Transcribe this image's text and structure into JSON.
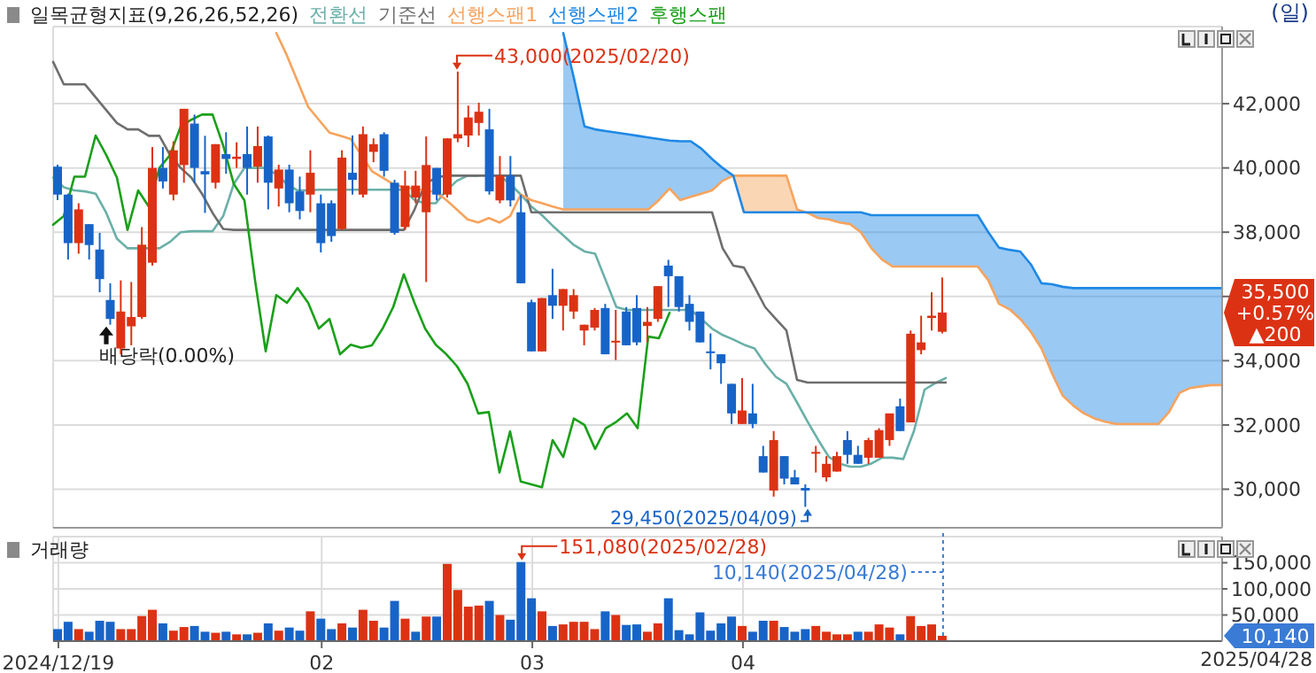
{
  "chart_data": [
    {
      "type": "candlestick",
      "legend_title": "일목균형지표(9,26,26,52,26)",
      "legend": "top left",
      "grid": true,
      "marker": "none",
      "tick_labels": "y",
      "categories": [
        "2024/12/19",
        null,
        null,
        null,
        null,
        null,
        null,
        null,
        null,
        null,
        null,
        null,
        null,
        null,
        null,
        null,
        null,
        null,
        null,
        null,
        null,
        null,
        null,
        null,
        null,
        "02",
        null,
        null,
        null,
        null,
        null,
        null,
        null,
        null,
        null,
        null,
        null,
        null,
        null,
        null,
        null,
        null,
        null,
        null,
        null,
        "03",
        null,
        null,
        null,
        null,
        null,
        null,
        null,
        null,
        null,
        null,
        null,
        null,
        null,
        null,
        null,
        null,
        null,
        null,
        null,
        "04",
        null,
        null,
        null,
        null,
        null,
        null,
        null,
        null,
        null,
        null,
        null,
        null,
        null,
        null,
        null,
        null,
        null,
        null,
        null,
        null,
        null,
        null,
        null,
        null,
        null,
        null,
        null,
        null,
        null,
        null,
        null,
        null,
        null,
        null,
        null,
        null,
        null,
        null,
        null,
        null,
        null,
        null,
        null,
        null,
        null
      ],
      "ylim": [
        28800,
        44400
      ],
      "yticks": [
        {
          "value": 30000,
          "label": "30,000"
        },
        {
          "value": 32000,
          "label": "32,000"
        },
        {
          "value": 34000,
          "label": "34,000"
        },
        {
          "value": 36000,
          "label": null
        },
        {
          "value": 38000,
          "label": "38,000"
        },
        {
          "value": 40000,
          "label": "40,000"
        },
        {
          "value": 42000,
          "label": "42,000"
        }
      ],
      "ohlc": [
        [
          40040,
          40100,
          39000,
          39170
        ],
        [
          39170,
          39200,
          37150,
          37660
        ],
        [
          37660,
          38900,
          37330,
          38710
        ],
        [
          38250,
          38250,
          37150,
          37600
        ],
        [
          37460,
          37980,
          36130,
          36540
        ],
        [
          35890,
          36410,
          35120,
          35300
        ],
        [
          34380,
          36500,
          34200,
          35530
        ],
        [
          35070,
          36450,
          34480,
          35360
        ],
        [
          35360,
          38160,
          35300,
          37610
        ],
        [
          37050,
          40650,
          36960,
          40000
        ],
        [
          40000,
          40650,
          39360,
          39580
        ],
        [
          39170,
          40830,
          38990,
          40550
        ],
        [
          40090,
          41840,
          39540,
          41840
        ],
        [
          41380,
          41660,
          39540,
          40000
        ],
        [
          39900,
          41000,
          38600,
          39800
        ],
        [
          39540,
          40740,
          39360,
          40740
        ],
        [
          40430,
          41110,
          39820,
          40280
        ],
        [
          40280,
          40800,
          40000,
          40350
        ],
        [
          40430,
          41290,
          39170,
          40000
        ],
        [
          40040,
          41290,
          39540,
          40680
        ],
        [
          40980,
          41010,
          38710,
          39540
        ],
        [
          39360,
          40100,
          38800,
          39950
        ],
        [
          39950,
          40100,
          38620,
          38900
        ],
        [
          39270,
          39730,
          38400,
          38660
        ],
        [
          39170,
          40550,
          38620,
          39850
        ],
        [
          38900,
          39170,
          37370,
          37660
        ],
        [
          38900,
          38990,
          37700,
          37880
        ],
        [
          38100,
          40550,
          38070,
          40320
        ],
        [
          39850,
          41010,
          39170,
          39630
        ],
        [
          39170,
          41290,
          39080,
          41050
        ],
        [
          40500,
          40920,
          40180,
          40740
        ],
        [
          41050,
          41110,
          39730,
          39910
        ],
        [
          39540,
          39630,
          37920,
          37980
        ],
        [
          38160,
          39910,
          38070,
          39450
        ],
        [
          39080,
          39910,
          38900,
          39450
        ],
        [
          38620,
          40980,
          36450,
          40090
        ],
        [
          40000,
          40000,
          38990,
          39170
        ],
        [
          39170,
          40920,
          39080,
          40920
        ],
        [
          40920,
          43000,
          40800,
          41050
        ],
        [
          41010,
          41940,
          40650,
          41570
        ],
        [
          41400,
          42030,
          41010,
          41750
        ],
        [
          41200,
          41840,
          39170,
          39270
        ],
        [
          38990,
          40370,
          38900,
          39760
        ],
        [
          39760,
          40370,
          38800,
          38990
        ],
        [
          38620,
          39170,
          36410,
          36410
        ],
        [
          35820,
          35900,
          34290,
          34290
        ],
        [
          34290,
          35950,
          34290,
          35950
        ],
        [
          36040,
          36860,
          35300,
          35710
        ],
        [
          35710,
          36230,
          34940,
          36230
        ],
        [
          35530,
          36230,
          35300,
          36040
        ],
        [
          34940,
          35120,
          34480,
          35120
        ],
        [
          35030,
          35640,
          34940,
          35580
        ],
        [
          35640,
          35770,
          34200,
          34200
        ],
        [
          34570,
          35580,
          34020,
          34620
        ],
        [
          35530,
          35670,
          34480,
          34480
        ],
        [
          35640,
          36040,
          34480,
          34570
        ],
        [
          35080,
          35670,
          34570,
          35210
        ],
        [
          35300,
          36320,
          35210,
          36320
        ],
        [
          36960,
          37140,
          35670,
          36630
        ],
        [
          36630,
          36630,
          35530,
          35670
        ],
        [
          35770,
          36040,
          34940,
          35210
        ],
        [
          35530,
          35530,
          34570,
          34570
        ],
        [
          34290,
          34850,
          33730,
          34240
        ],
        [
          34200,
          34200,
          33280,
          33920
        ],
        [
          33280,
          33280,
          32030,
          32360
        ],
        [
          32030,
          33460,
          32030,
          32450
        ],
        [
          32360,
          33280,
          31900,
          32030
        ],
        [
          31030,
          31350,
          30520,
          30520
        ],
        [
          29960,
          31810,
          29770,
          31530
        ],
        [
          31030,
          31030,
          30150,
          30330
        ],
        [
          30370,
          30600,
          30150,
          30150
        ],
        [
          30040,
          30150,
          29450,
          29960
        ],
        [
          31140,
          31350,
          30520,
          31160
        ],
        [
          30370,
          31030,
          30240,
          30790
        ],
        [
          30550,
          31160,
          30550,
          31030
        ],
        [
          31530,
          31810,
          30790,
          31070
        ],
        [
          31070,
          31350,
          30790,
          30790
        ],
        [
          30980,
          31600,
          30790,
          31530
        ],
        [
          30980,
          31900,
          30980,
          31840
        ],
        [
          31530,
          32360,
          31350,
          32360
        ],
        [
          32580,
          32820,
          31810,
          31810
        ],
        [
          32080,
          34940,
          32080,
          34840
        ],
        [
          34330,
          35400,
          34200,
          34570
        ],
        [
          35330,
          36130,
          34940,
          35400
        ],
        [
          34900,
          36590,
          34850,
          35500
        ],
        null,
        null,
        null,
        null,
        null,
        null,
        null,
        null,
        null,
        null,
        null,
        null,
        null,
        null,
        null,
        null,
        null,
        null,
        null,
        null,
        null,
        null,
        null,
        null,
        null,
        null
      ],
      "colors": [
        "#1764c8",
        "#1764c8",
        "#dc3214",
        "#1764c8",
        "#1764c8",
        "#1764c8",
        "#dc3214",
        "#dc3214",
        "#dc3214",
        "#dc3214",
        "#1764c8",
        "#dc3214",
        "#dc3214",
        "#1764c8",
        "#1764c8",
        "#dc3214",
        "#1764c8",
        "#dc3214",
        "#1764c8",
        "#dc3214",
        "#1764c8",
        "#dc3214",
        "#1764c8",
        "#1764c8",
        "#dc3214",
        "#1764c8",
        "#1764c8",
        "#dc3214",
        "#1764c8",
        "#dc3214",
        "#dc3214",
        "#1764c8",
        "#1764c8",
        "#dc3214",
        "#dc3214",
        "#dc3214",
        "#1764c8",
        "#dc3214",
        "#dc3214",
        "#dc3214",
        "#dc3214",
        "#1764c8",
        "#dc3214",
        "#1764c8",
        "#1764c8",
        "#1764c8",
        "#dc3214",
        "#1764c8",
        "#dc3214",
        "#dc3214",
        "#dc3214",
        "#dc3214",
        "#1764c8",
        "#dc3214",
        "#1764c8",
        "#1764c8",
        "#dc3214",
        "#dc3214",
        "#1764c8",
        "#1764c8",
        "#1764c8",
        "#1764c8",
        "#1764c8",
        "#1764c8",
        "#1764c8",
        "#dc3214",
        "#1764c8",
        "#1764c8",
        "#dc3214",
        "#1764c8",
        "#1764c8",
        "#1764c8",
        "#dc3214",
        "#dc3214",
        "#dc3214",
        "#1764c8",
        "#1764c8",
        "#dc3214",
        "#dc3214",
        "#dc3214",
        "#1764c8",
        "#dc3214",
        "#dc3214",
        "#dc3214",
        "#dc3214",
        null,
        null,
        null,
        null,
        null,
        null,
        null,
        null,
        null,
        null,
        null,
        null,
        null,
        null,
        null,
        null,
        null,
        null,
        null,
        null,
        null,
        null,
        null,
        null,
        null,
        null
      ],
      "series": [
        {
          "name": "전환선",
          "type": "line",
          "color": "#6ab0a8",
          "values": [
            39700,
            39400,
            39300,
            39270,
            39200,
            38600,
            37800,
            37500,
            37500,
            37500,
            37500,
            37700,
            38000,
            38030,
            38030,
            38030,
            38500,
            39500,
            40000,
            40000,
            40000,
            39800,
            39500,
            39300,
            39300,
            39320,
            39320,
            39320,
            39320,
            39320,
            39320,
            39320,
            39320,
            39320,
            39000,
            38900,
            38900,
            39300,
            39600,
            39760,
            39760,
            null,
            39760,
            39500,
            39170,
            38800,
            38530,
            38200,
            37900,
            37600,
            37400,
            37330,
            36500,
            35670,
            35580,
            35580,
            35580,
            35580,
            35580,
            35580,
            35580,
            35300,
            35000,
            34800,
            34660,
            34500,
            34380,
            33900,
            33500,
            33280,
            32700,
            32100,
            31530,
            31000,
            30800,
            30700,
            30700,
            30800,
            30980,
            30980,
            30940,
            31810,
            33100,
            33300,
            33460,
            null,
            null,
            null,
            null,
            null,
            null,
            null,
            null,
            null,
            null,
            null,
            null,
            null,
            null,
            null,
            null,
            null,
            null,
            null,
            null,
            null,
            null,
            null,
            null,
            null,
            null
          ]
        },
        {
          "name": "기준선",
          "type": "line",
          "color": "#6e6e6e",
          "values": [
            43300,
            42600,
            42600,
            42600,
            42200,
            41800,
            41400,
            41200,
            41200,
            41000,
            41000,
            40400,
            40000,
            39700,
            39200,
            38600,
            38100,
            38070,
            38070,
            38070,
            38070,
            38070,
            38070,
            38070,
            38070,
            38070,
            38070,
            38070,
            38070,
            38070,
            38070,
            38070,
            38070,
            38070,
            38700,
            39500,
            39700,
            39760,
            39760,
            39760,
            39760,
            39760,
            39760,
            39760,
            39760,
            38620,
            38620,
            38620,
            38620,
            38620,
            38620,
            38620,
            38620,
            38620,
            38620,
            38620,
            38620,
            38620,
            38620,
            38620,
            38620,
            38620,
            38620,
            37500,
            36960,
            36900,
            36300,
            35670,
            35300,
            34940,
            33400,
            33320,
            33320,
            33320,
            33320,
            33320,
            33320,
            33320,
            33320,
            33320,
            33320,
            33320,
            33320,
            33320,
            33320,
            null,
            null,
            null,
            null,
            null,
            null,
            null,
            null,
            null,
            null,
            null,
            null,
            null,
            null,
            null,
            null,
            null,
            null,
            null,
            null,
            null,
            null,
            null,
            null,
            null,
            null
          ]
        },
        {
          "name": "선행스팬1",
          "type": "line",
          "color": "#f7a35c",
          "values": [
            null,
            null,
            null,
            null,
            null,
            null,
            null,
            null,
            null,
            null,
            null,
            null,
            null,
            null,
            null,
            null,
            null,
            null,
            null,
            null,
            null,
            44200,
            43500,
            42700,
            41900,
            41500,
            41100,
            41000,
            40900,
            40400,
            39900,
            39700,
            39500,
            39400,
            39350,
            39300,
            39250,
            39000,
            38700,
            38400,
            38300,
            38440,
            38300,
            38500,
            39170,
            39000,
            38900,
            38800,
            38710,
            38710,
            38710,
            38710,
            38710,
            38710,
            38710,
            38710,
            38710,
            39000,
            39360,
            39000,
            39100,
            39200,
            39300,
            39600,
            39760,
            39760,
            39760,
            39760,
            39760,
            39760,
            38710,
            38600,
            38440,
            38400,
            38300,
            38250,
            38000,
            37500,
            37150,
            36930,
            36930,
            36930,
            36930,
            36930,
            36930,
            36930,
            36930,
            36930,
            36500,
            35770,
            35600,
            35300,
            34900,
            34380,
            33600,
            32910,
            32600,
            32360,
            32200,
            32100,
            32030,
            32030,
            32030,
            32030,
            32030,
            32400,
            33000,
            33150,
            33200,
            33240,
            33240
          ],
          "lower": [
            null,
            null,
            null,
            null,
            null,
            null,
            null,
            null,
            null,
            null,
            null,
            null,
            null,
            null,
            null,
            null,
            null,
            null,
            null,
            null,
            null,
            null,
            null,
            null,
            null,
            null,
            null,
            null,
            null,
            null,
            null,
            null,
            null,
            null,
            null,
            null,
            null,
            null,
            null,
            null,
            null,
            null,
            null,
            null,
            null,
            null,
            null,
            null,
            null,
            null,
            null,
            null,
            null,
            null,
            null,
            null,
            null,
            null,
            null,
            null,
            null,
            null,
            null,
            null,
            39760,
            38620,
            38620,
            38620,
            38620,
            38620,
            38620,
            null,
            null,
            null,
            null,
            null,
            null,
            null,
            null,
            null,
            null,
            null,
            null,
            null,
            null,
            null,
            null,
            null,
            null,
            null,
            null,
            null,
            null,
            null,
            null,
            null,
            null,
            null,
            null,
            null,
            null,
            null,
            null,
            null,
            null,
            null,
            null,
            null,
            null,
            null,
            null
          ],
          "upper": [
            null,
            null,
            null,
            null,
            null,
            null,
            null,
            null,
            null,
            null,
            null,
            null,
            null,
            null,
            null,
            null,
            null,
            null,
            null,
            null,
            null,
            null,
            null,
            null,
            null,
            null,
            null,
            null,
            null,
            null,
            null,
            null,
            null,
            null,
            null,
            null,
            null,
            null,
            null,
            null,
            null,
            null,
            null,
            null,
            null,
            null,
            null,
            null,
            null,
            null,
            null,
            null,
            null,
            null,
            null,
            null,
            null,
            null,
            null,
            null,
            null,
            null,
            null,
            null,
            39760,
            39760,
            39760,
            39760,
            39760,
            39760,
            38710,
            null,
            null,
            null,
            null,
            null,
            null,
            null,
            null,
            null,
            null,
            null,
            null,
            null,
            null,
            null,
            null,
            null,
            null,
            null,
            null,
            null,
            null,
            null,
            null,
            null,
            null,
            null,
            null,
            null,
            null,
            null,
            null,
            null,
            null,
            null,
            null,
            null,
            null,
            null,
            null
          ]
        },
        {
          "name": "선행스팬2",
          "type": "line",
          "color": "#1e88e5",
          "values": [
            null,
            null,
            null,
            null,
            null,
            null,
            null,
            null,
            null,
            null,
            null,
            null,
            null,
            null,
            null,
            null,
            null,
            null,
            null,
            null,
            null,
            null,
            null,
            null,
            null,
            null,
            null,
            null,
            null,
            null,
            null,
            null,
            null,
            null,
            null,
            null,
            null,
            null,
            null,
            null,
            null,
            null,
            null,
            null,
            null,
            null,
            null,
            null,
            44200,
            42800,
            41290,
            41200,
            41150,
            41100,
            41050,
            41000,
            40950,
            40900,
            40850,
            40830,
            40830,
            40600,
            40280,
            40000,
            39760,
            38620,
            38620,
            38620,
            38620,
            38620,
            38620,
            38620,
            38620,
            38620,
            38620,
            38620,
            38620,
            38530,
            38530,
            38530,
            38530,
            38530,
            38530,
            38530,
            38530,
            38530,
            38530,
            38530,
            38000,
            37520,
            37450,
            37400,
            37000,
            36410,
            36380,
            36300,
            36260,
            36260,
            36260,
            36260,
            36260,
            36260,
            36260,
            36260,
            36260,
            36260,
            36260,
            36260,
            36260,
            36260,
            36260
          ],
          "lower": [
            null,
            null,
            null,
            null,
            null,
            null,
            null,
            null,
            null,
            null,
            null,
            null,
            null,
            null,
            null,
            null,
            null,
            null,
            null,
            null,
            null,
            null,
            null,
            null,
            null,
            null,
            null,
            null,
            null,
            null,
            null,
            null,
            null,
            null,
            null,
            null,
            null,
            null,
            null,
            null,
            null,
            null,
            null,
            null,
            null,
            null,
            null,
            null,
            38710,
            38710,
            38710,
            38710,
            38710,
            38710,
            38710,
            38710,
            38710,
            39000,
            39360,
            39000,
            39100,
            39200,
            39300,
            39600,
            39760,
            null,
            null,
            null,
            null,
            null,
            null,
            38600,
            38440,
            38400,
            38300,
            38250,
            38000,
            37500,
            37150,
            36930,
            36930,
            36930,
            36930,
            36930,
            36930,
            36930,
            36930,
            36930,
            36500,
            35770,
            35600,
            35300,
            34900,
            34380,
            33600,
            32910,
            32600,
            32360,
            32200,
            32100,
            32030,
            32030,
            32030,
            32030,
            32030,
            32400,
            33000,
            33150,
            33200,
            33240,
            33240
          ],
          "upper": [
            null,
            null,
            null,
            null,
            null,
            null,
            null,
            null,
            null,
            null,
            null,
            null,
            null,
            null,
            null,
            null,
            null,
            null,
            null,
            null,
            null,
            null,
            null,
            null,
            null,
            null,
            null,
            null,
            null,
            null,
            null,
            null,
            null,
            null,
            null,
            null,
            null,
            null,
            null,
            null,
            null,
            null,
            null,
            null,
            null,
            null,
            null,
            null,
            44200,
            42800,
            41290,
            41200,
            41150,
            41100,
            41050,
            41000,
            40950,
            40900,
            40850,
            40830,
            40830,
            40600,
            40280,
            40000,
            39760,
            null,
            null,
            null,
            null,
            null,
            null,
            38620,
            38620,
            38620,
            38620,
            38620,
            38620,
            38530,
            38530,
            38530,
            38530,
            38530,
            38530,
            38530,
            38530,
            38530,
            38530,
            38530,
            38000,
            37520,
            37450,
            37400,
            37000,
            36410,
            36380,
            36300,
            36260,
            36260,
            36260,
            36260,
            36260,
            36260,
            36260,
            36260,
            36260,
            36260,
            36260,
            36260,
            36260,
            36260,
            36260
          ]
        },
        {
          "name": "후행스팬",
          "type": "line",
          "color": "#1aa01a",
          "values": [
            38230,
            38500,
            39730,
            39730,
            41010,
            40400,
            39700,
            38070,
            39300,
            38800,
            40000,
            40400,
            41290,
            41500,
            41660,
            41660,
            40700,
            39500,
            38990,
            36500,
            34290,
            36040,
            35800,
            36260,
            35800,
            35000,
            35300,
            34200,
            34500,
            34400,
            34480,
            35000,
            35670,
            36690,
            35800,
            35000,
            34500,
            34200,
            33830,
            33280,
            32360,
            32400,
            30520,
            31800,
            30240,
            30150,
            30060,
            31530,
            31000,
            32200,
            32000,
            31250,
            31900,
            32100,
            32360,
            31900,
            34750,
            34700,
            35490,
            null,
            null,
            null,
            null,
            null,
            null,
            null,
            null,
            null,
            null,
            null,
            null,
            null,
            null,
            null,
            null,
            null,
            null,
            null,
            null,
            null,
            null,
            null,
            null,
            null,
            null,
            null,
            null,
            null,
            null,
            null,
            null,
            null,
            null,
            null,
            null,
            null,
            null,
            null,
            null,
            null,
            null,
            null,
            null,
            null,
            null,
            null,
            null,
            null,
            null,
            null,
            null
          ]
        }
      ],
      "annotations": [
        "배당락(0.00%)",
        "(일)",
        "43,000(2025/02/20)",
        "29,450(2025/04/09)",
        "35,500 +0.57% ▲200"
      ]
    },
    {
      "type": "bar",
      "legend": "top left",
      "grid": true,
      "categories": [
        "2024/12/19",
        null,
        null,
        null,
        null,
        null,
        null,
        null,
        null,
        null,
        null,
        null,
        null,
        null,
        null,
        null,
        null,
        null,
        null,
        null,
        null,
        null,
        null,
        null,
        null,
        "02",
        null,
        null,
        null,
        null,
        null,
        null,
        null,
        null,
        null,
        null,
        null,
        null,
        null,
        null,
        null,
        null,
        null,
        null,
        null,
        "03",
        null,
        null,
        null,
        null,
        null,
        null,
        null,
        null,
        null,
        null,
        null,
        null,
        null,
        null,
        null,
        null,
        null,
        null,
        null,
        "04",
        null,
        null,
        null,
        null,
        null,
        null,
        null,
        null,
        null,
        null,
        null,
        null,
        null,
        null,
        null,
        null,
        null,
        null,
        null,
        null,
        null,
        null,
        null,
        null,
        null,
        null,
        null,
        null,
        null,
        null,
        null,
        null,
        null,
        null,
        null,
        null,
        null,
        null,
        null,
        null,
        null,
        null,
        null,
        null,
        null
      ],
      "ylim": [
        0,
        200000
      ],
      "yticks": [
        {
          "value": 50000,
          "label": "50,000"
        },
        {
          "value": 100000,
          "label": "100,000"
        },
        {
          "value": 150000,
          "label": "150,000"
        }
      ],
      "series": [
        {
          "name": "거래량",
          "color": "#dc3214",
          "values": [
            23000,
            37000,
            23000,
            18000,
            39000,
            37000,
            23000,
            23000,
            48000,
            60000,
            34000,
            20000,
            27000,
            29000,
            18000,
            16000,
            18000,
            13000,
            13000,
            16000,
            34000,
            20000,
            26000,
            20000,
            57000,
            43000,
            23000,
            34000,
            26000,
            60000,
            39000,
            26000,
            77000,
            43000,
            18000,
            47000,
            47000,
            148000,
            98000,
            66000,
            68000,
            77000,
            50000,
            41000,
            151080,
            82000,
            57000,
            29000,
            32000,
            37000,
            37000,
            23000,
            57000,
            50000,
            31000,
            32000,
            18000,
            34000,
            82000,
            21000,
            13000,
            55000,
            20000,
            34000,
            47000,
            29000,
            18000,
            39000,
            39000,
            27000,
            18000,
            23000,
            29000,
            18000,
            13000,
            13000,
            18000,
            18000,
            32000,
            26000,
            13000,
            48000,
            29000,
            32000,
            10140,
            null,
            null,
            null,
            null,
            null,
            null,
            null,
            null,
            null,
            null,
            null,
            null,
            null,
            null,
            null,
            null,
            null,
            null,
            null,
            null,
            null,
            null,
            null,
            null,
            null,
            null
          ],
          "colors": [
            "#1764c8",
            "#1764c8",
            "#dc3214",
            "#1764c8",
            "#1764c8",
            "#1764c8",
            "#dc3214",
            "#dc3214",
            "#dc3214",
            "#dc3214",
            "#1764c8",
            "#dc3214",
            "#dc3214",
            "#1764c8",
            "#1764c8",
            "#dc3214",
            "#1764c8",
            "#dc3214",
            "#1764c8",
            "#dc3214",
            "#1764c8",
            "#dc3214",
            "#1764c8",
            "#1764c8",
            "#dc3214",
            "#1764c8",
            "#1764c8",
            "#dc3214",
            "#1764c8",
            "#dc3214",
            "#dc3214",
            "#1764c8",
            "#1764c8",
            "#dc3214",
            "#1764c8",
            "#dc3214",
            "#1764c8",
            "#dc3214",
            "#dc3214",
            "#dc3214",
            "#dc3214",
            "#1764c8",
            "#dc3214",
            "#1764c8",
            "#1764c8",
            "#1764c8",
            "#dc3214",
            "#1764c8",
            "#dc3214",
            "#dc3214",
            "#dc3214",
            "#dc3214",
            "#1764c8",
            "#dc3214",
            "#1764c8",
            "#1764c8",
            "#dc3214",
            "#dc3214",
            "#1764c8",
            "#1764c8",
            "#1764c8",
            "#1764c8",
            "#1764c8",
            "#1764c8",
            "#1764c8",
            "#dc3214",
            "#1764c8",
            "#1764c8",
            "#dc3214",
            "#1764c8",
            "#1764c8",
            "#1764c8",
            "#dc3214",
            "#dc3214",
            "#dc3214",
            "#dc3214",
            "#1764c8",
            "#dc3214",
            "#dc3214",
            "#dc3214",
            "#1764c8",
            "#dc3214",
            "#dc3214",
            "#dc3214",
            "#dc3214",
            null,
            null,
            null,
            null,
            null,
            null,
            null,
            null,
            null,
            null,
            null,
            null,
            null,
            null,
            null,
            null,
            null,
            null,
            null,
            null,
            null,
            null,
            null,
            null,
            null,
            null
          ]
        }
      ],
      "annotations": [
        "2025/04/28",
        "151,080(2025/02/28)",
        "10,140(2025/04/28)",
        "10,140"
      ]
    }
  ]
}
